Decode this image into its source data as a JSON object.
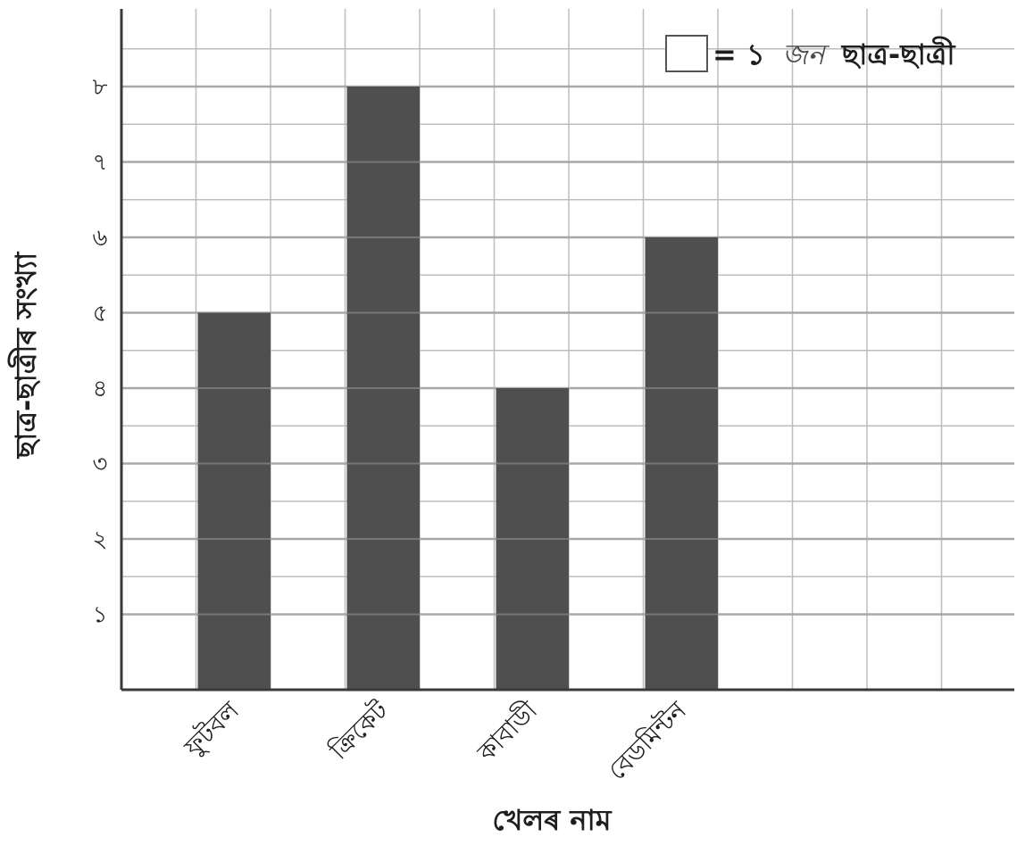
{
  "chart_data": {
    "type": "bar",
    "categories": [
      "ফুটবল",
      "ক্রিকেট",
      "কাবাডী",
      "বেডমিন্টন"
    ],
    "values": [
      5,
      8,
      4,
      6
    ],
    "ylabel": "ছাত্র-ছাত্রীৰ সংখ্যা",
    "xlabel": "খেলৰ নাম",
    "yticks": [
      "১",
      "২",
      "৩",
      "৪",
      "৫",
      "৬",
      "৭",
      "৮"
    ],
    "ylim": [
      0,
      8
    ],
    "grid": true,
    "legend": {
      "position": "top-right",
      "prefix": "= ১",
      "accent": "জন",
      "suffix": "ছাত্র-ছাত্ৰী"
    },
    "colors": {
      "bar": "#4f4f4f",
      "grid": "#bdbdbd",
      "axis": "#3a3a3a"
    }
  }
}
